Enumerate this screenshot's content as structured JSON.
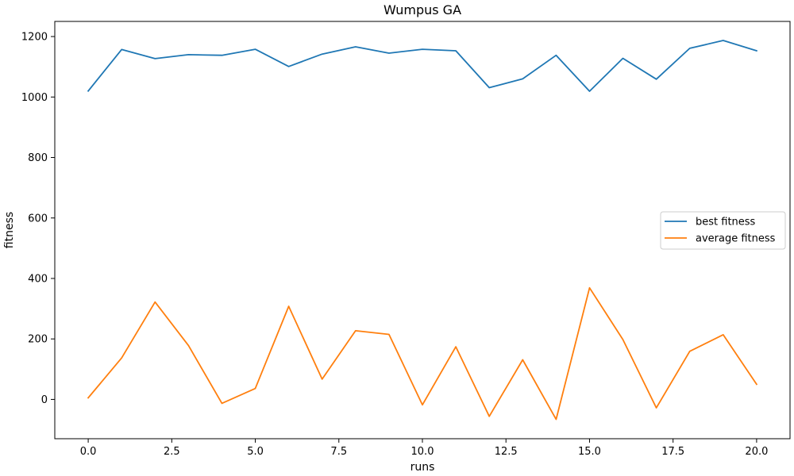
{
  "chart_data": {
    "type": "line",
    "title": "Wumpus GA",
    "xlabel": "runs",
    "ylabel": "fitness",
    "xlim": [
      -1.0,
      21.0
    ],
    "ylim": [
      -130,
      1250
    ],
    "xticks": [
      0.0,
      2.5,
      5.0,
      7.5,
      10.0,
      12.5,
      15.0,
      17.5,
      20.0
    ],
    "xtick_labels": [
      "0.0",
      "2.5",
      "5.0",
      "7.5",
      "10.0",
      "12.5",
      "15.0",
      "17.5",
      "20.0"
    ],
    "yticks": [
      0,
      200,
      400,
      600,
      800,
      1000,
      1200
    ],
    "ytick_labels": [
      "0",
      "200",
      "400",
      "600",
      "800",
      "1000",
      "1200"
    ],
    "grid": false,
    "legend_position": "center-right",
    "x": [
      0,
      1,
      2,
      3,
      4,
      5,
      6,
      7,
      8,
      9,
      10,
      11,
      12,
      13,
      14,
      15,
      16,
      17,
      18,
      19,
      20
    ],
    "series": [
      {
        "name": "best fitness",
        "color": "#1f77b4",
        "values": [
          1020,
          1157,
          1127,
          1140,
          1138,
          1158,
          1101,
          1142,
          1166,
          1145,
          1158,
          1153,
          1031,
          1060,
          1138,
          1019,
          1128,
          1059,
          1161,
          1187,
          1153
        ]
      },
      {
        "name": "average fitness",
        "color": "#ff7f0e",
        "values": [
          5,
          137,
          322,
          178,
          -13,
          36,
          308,
          67,
          227,
          215,
          -18,
          174,
          -56,
          131,
          -66,
          369,
          198,
          -28,
          159,
          214,
          50
        ]
      }
    ]
  }
}
